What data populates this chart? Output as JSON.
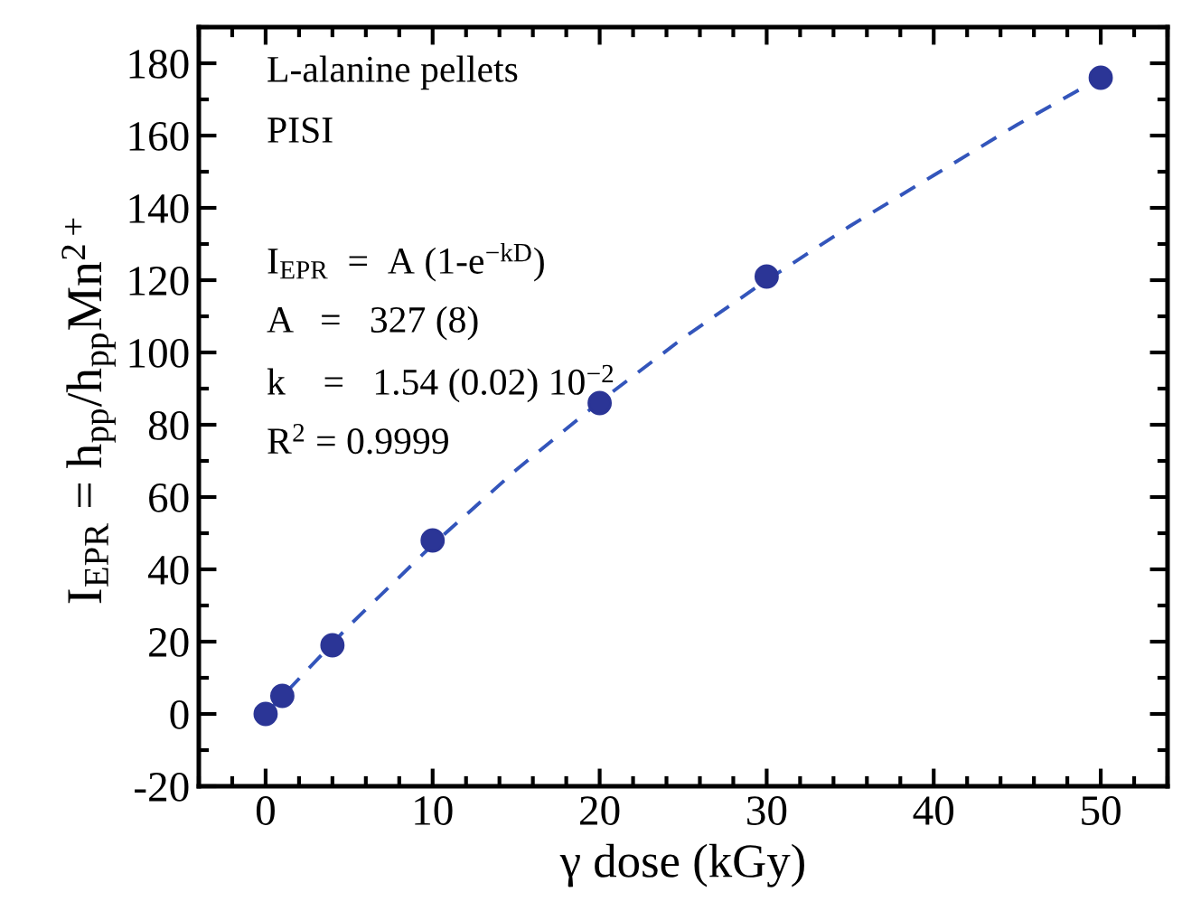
{
  "chart_data": {
    "type": "scatter",
    "xlabel": "γ dose (kGy)",
    "ylabel": "I$_{EPR}$ = h$_{pp}$/h$_{pp}$Mn$^{2+}$",
    "xlim": [
      -4,
      54
    ],
    "xticks": [
      0,
      10,
      20,
      30,
      40,
      50
    ],
    "ylim": [
      -20,
      190
    ],
    "yticks": [
      -20,
      0,
      20,
      40,
      60,
      80,
      100,
      120,
      140,
      160,
      180
    ],
    "grid": false,
    "legend": false,
    "series": [
      {
        "type": "line",
        "color": "#3355bb",
        "line_style": "dashed",
        "marker": "none",
        "x": [
          0,
          5,
          10,
          15,
          20,
          25,
          30,
          35,
          40,
          45,
          50
        ],
        "values": [
          0,
          24.4,
          46.8,
          67.5,
          86.4,
          104,
          120,
          135,
          149,
          163,
          176
        ]
      },
      {
        "color": "#2b3596",
        "marker": "circle",
        "x": [
          0,
          1,
          4,
          10,
          20,
          30,
          50
        ],
        "values": [
          0,
          5,
          19,
          48,
          86,
          121,
          176
        ]
      }
    ],
    "annotations": [
      "L-alanine pellets",
      "PISI",
      "I$_{EPR}$  =  A (1-e$^{−kD}$)",
      "A   =   327 (8)",
      "k    =   1.54 (0.02) 10$^{−2}$",
      "R$^{2}$ = 0.9999"
    ]
  }
}
